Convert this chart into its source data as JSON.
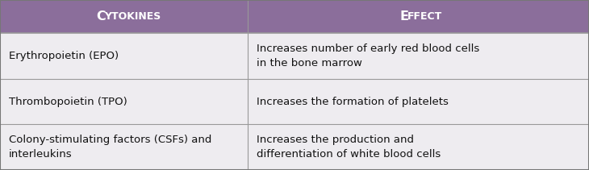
{
  "header": [
    [
      "C",
      "YTOKINES"
    ],
    [
      "E",
      "FFECT"
    ]
  ],
  "rows": [
    [
      "Erythropoietin (EPO)",
      "Increases number of early red blood cells\nin the bone marrow"
    ],
    [
      "Thrombopoietin (TPO)",
      "Increases the formation of platelets"
    ],
    [
      "Colony-stimulating factors (CSFs) and\ninterleukins",
      "Increases the production and\ndifferentiation of white blood cells"
    ]
  ],
  "header_bg": "#8B6E9B",
  "header_text_color": "#FFFFFF",
  "row_bg": "#EEECF0",
  "row_text_color": "#111111",
  "border_color": "#999999",
  "col_split": 0.42,
  "fig_width": 7.3,
  "fig_height": 2.11,
  "header_fontsize_big": 11.5,
  "header_fontsize_small": 9.0,
  "row_fontsize": 9.5,
  "outer_border_color": "#777777"
}
